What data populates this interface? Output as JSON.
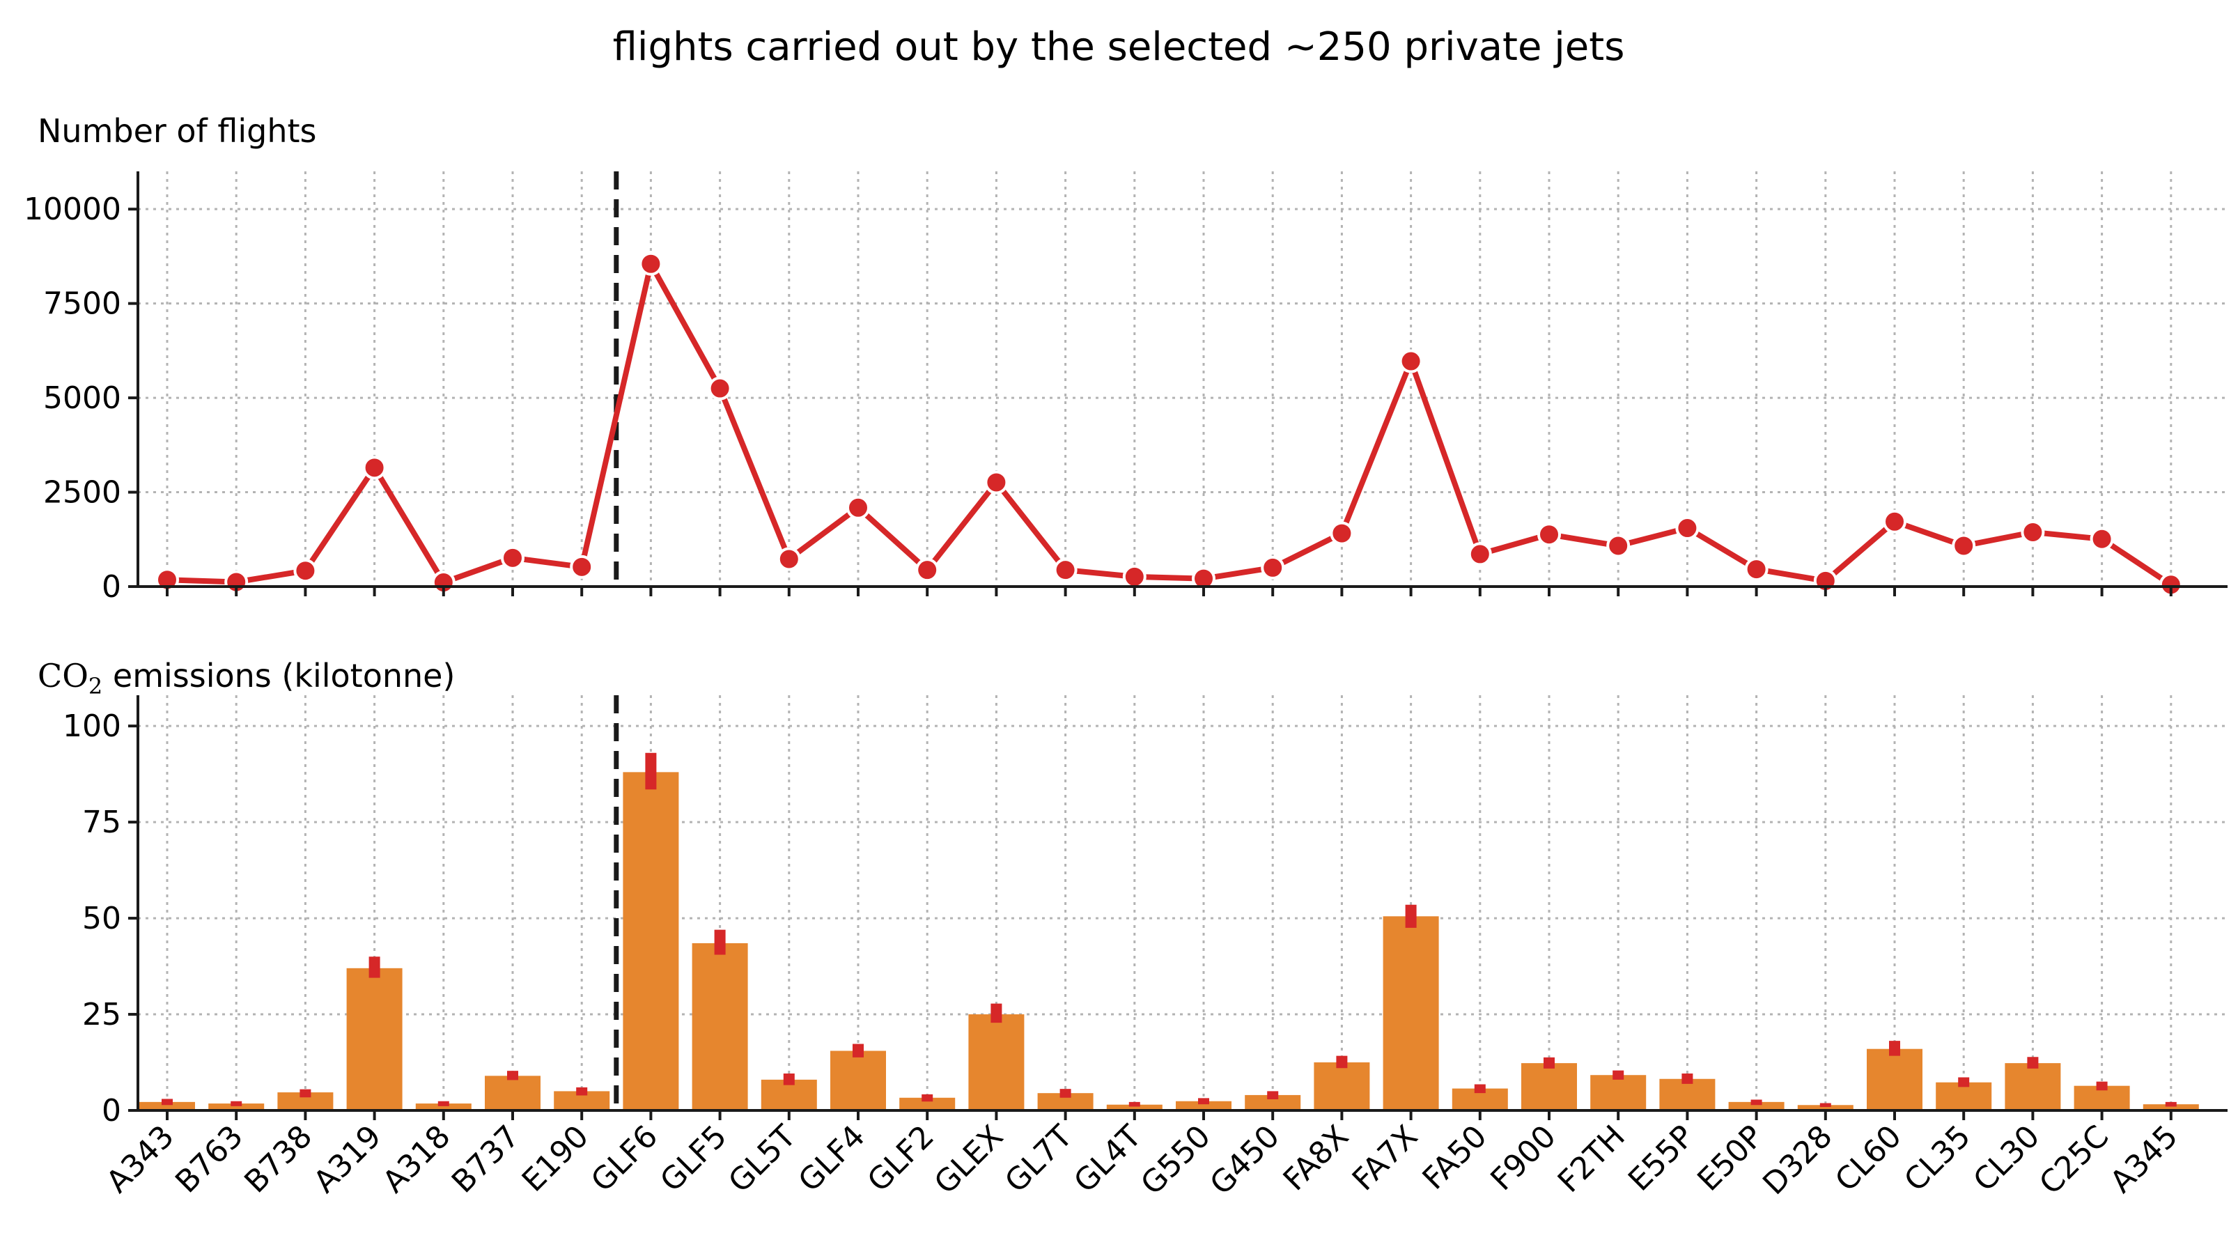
{
  "chart_data": [
    {
      "type": "line",
      "panel": "top",
      "title": "flights carried out by the selected ~250 private jets",
      "ylabel": "Number of flights",
      "xlabel": "",
      "categories": [
        "A343",
        "B763",
        "B738",
        "A319",
        "A318",
        "B737",
        "E190",
        "GLF6",
        "GLF5",
        "GL5T",
        "GLF4",
        "GLF2",
        "GLEX",
        "GL7T",
        "GL4T",
        "G550",
        "G450",
        "FA8X",
        "FA7X",
        "FA50",
        "F900",
        "F2TH",
        "E55P",
        "E50P",
        "D328",
        "CL60",
        "CL35",
        "CL30",
        "C25C",
        "A345"
      ],
      "values": [
        180,
        120,
        420,
        3150,
        110,
        760,
        520,
        8550,
        5250,
        730,
        2090,
        440,
        2760,
        440,
        260,
        210,
        500,
        1410,
        5970,
        860,
        1380,
        1080,
        1550,
        460,
        150,
        1720,
        1080,
        1440,
        1260,
        50
      ],
      "ylim": [
        0,
        11000
      ],
      "yticks": [
        0,
        2500,
        5000,
        7500,
        10000
      ],
      "grid": true,
      "separator_after_category": "E190",
      "colors": {
        "line": "#d62728",
        "marker": "#d62728"
      }
    },
    {
      "type": "bar",
      "panel": "bottom",
      "ylabel_chem": "CO",
      "ylabel_sub": "2",
      "ylabel_rest": " emissions (kilotonne)",
      "xlabel": "",
      "categories": [
        "A343",
        "B763",
        "B738",
        "A319",
        "A318",
        "B737",
        "E190",
        "GLF6",
        "GLF5",
        "GL5T",
        "GLF4",
        "GLF2",
        "GLEX",
        "GL7T",
        "GL4T",
        "G550",
        "G450",
        "FA8X",
        "FA7X",
        "FA50",
        "F900",
        "F2TH",
        "E55P",
        "E50P",
        "D328",
        "CL60",
        "CL35",
        "CL30",
        "C25C",
        "A345"
      ],
      "values": [
        2.2,
        1.8,
        4.7,
        37,
        1.8,
        9,
        5,
        88,
        43.5,
        8,
        15.5,
        3.3,
        25,
        4.5,
        1.5,
        2.4,
        4,
        12.5,
        50.5,
        5.7,
        12.3,
        9.2,
        8.2,
        2.2,
        1.4,
        16,
        7.3,
        12.3,
        6.4,
        1.6
      ],
      "error_low": [
        1.4,
        1.1,
        3.4,
        34.5,
        1.1,
        7.9,
        3.9,
        83.5,
        40.5,
        6.6,
        13.8,
        2.3,
        22.8,
        3.3,
        1.0,
        1.6,
        2.9,
        11.0,
        47.5,
        4.5,
        10.9,
        8.0,
        6.9,
        1.4,
        0.9,
        14.2,
        6.1,
        10.9,
        5.2,
        1.0
      ],
      "error_high": [
        3.0,
        2.4,
        5.5,
        40.0,
        2.4,
        10.3,
        6.0,
        93.0,
        47.0,
        9.6,
        17.3,
        4.2,
        27.8,
        5.6,
        2.2,
        3.2,
        5.0,
        14.2,
        53.5,
        6.8,
        13.8,
        10.4,
        9.6,
        2.8,
        1.9,
        18.1,
        8.6,
        13.9,
        7.5,
        2.2
      ],
      "ylim": [
        0,
        108
      ],
      "yticks": [
        0,
        25,
        50,
        75,
        100
      ],
      "grid": true,
      "separator_after_category": "E190",
      "colors": {
        "bar": "#e6862e",
        "error": "#d62728"
      }
    }
  ]
}
